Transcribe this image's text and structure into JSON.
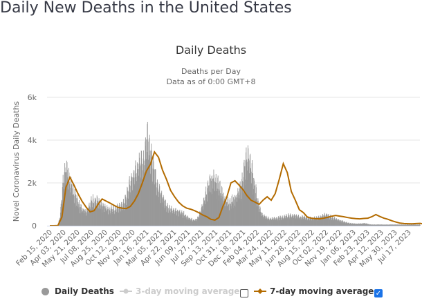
{
  "page": {
    "title": "Daily New Deaths in the United States"
  },
  "chart_data": {
    "type": "bar",
    "title": "Daily Deaths",
    "subtitle_lines": [
      "Deaths per Day",
      "Data as of 0:00 GMT+8"
    ],
    "ylabel": "Novel Coronavirus Daily Deaths",
    "xlabel": "",
    "ylim": [
      0,
      6000
    ],
    "y_ticks": [
      0,
      2000,
      4000,
      6000
    ],
    "y_tick_labels": [
      "0",
      "2k",
      "4k",
      "6k"
    ],
    "grid": true,
    "x_start_date": "Feb 15, 2020",
    "x_end_day": 1288,
    "x_tick_interval_days": 48,
    "x_tick_labels": [
      "Feb 15, 2020",
      "Apr 03, 2020",
      "May 21, 2020",
      "Jul 08, 2020",
      "Aug 25, 2020",
      "Oct 12, 2020",
      "Nov 29, 2020",
      "Jan 16, 2021",
      "Mar 05, 2021",
      "Apr 22, 2021",
      "Jun 09, 2021",
      "Jul 27, 2021",
      "Sep 13, 2021",
      "Oct 31, 2021",
      "Dec 18, 2021",
      "Feb 04, 2022",
      "Mar 24, 2022",
      "May 11, 2022",
      "Jun 28, 2022",
      "Aug 15, 2022",
      "Oct 02, 2022",
      "Nov 19, 2022",
      "Jan 06, 2023",
      "Feb 23, 2023",
      "Apr 12, 2023",
      "May 30, 2023",
      "Jul 17, 2023"
    ],
    "colors": {
      "daily": "#999999",
      "avg3": "#cccccc",
      "avg7": "#b36b00",
      "grid": "#e6e6e6",
      "axis": "#ccd6eb"
    },
    "series": [
      {
        "name": "Daily Deaths",
        "kind": "bar",
        "visible": true,
        "day_step": 7,
        "values": [
          0,
          0,
          0,
          5,
          50,
          450,
          1550,
          2350,
          2600,
          2250,
          1950,
          1700,
          1450,
          1300,
          1050,
          850,
          750,
          700,
          650,
          850,
          1000,
          1200,
          1100,
          1150,
          1050,
          950,
          900,
          850,
          800,
          750,
          750,
          800,
          750,
          800,
          850,
          900,
          900,
          1100,
          1350,
          1650,
          2050,
          2200,
          2350,
          2550,
          2800,
          3050,
          2750,
          3300,
          3850,
          3700,
          3300,
          2950,
          2500,
          2000,
          1600,
          1400,
          1300,
          1050,
          900,
          800,
          750,
          700,
          700,
          680,
          620,
          600,
          560,
          500,
          400,
          350,
          300,
          250,
          270,
          300,
          450,
          700,
          1050,
          1350,
          1700,
          1900,
          2100,
          2150,
          1950,
          1900,
          1750,
          1550,
          1300,
          1150,
          1100,
          1050,
          1100,
          1250,
          1200,
          1400,
          1550,
          1750,
          2300,
          2800,
          3150,
          2900,
          2650,
          2100,
          1650,
          1200,
          800,
          600,
          450,
          400,
          350,
          320,
          320,
          350,
          330,
          330,
          380,
          360,
          400,
          420,
          440,
          480,
          450,
          470,
          430,
          420,
          400,
          380,
          390,
          380,
          350,
          360,
          330,
          340,
          350,
          360,
          380,
          420,
          450,
          520,
          500,
          430,
          380,
          330,
          300,
          260,
          240,
          220,
          180,
          150,
          130,
          110,
          100,
          95,
          90,
          85,
          90,
          100,
          110,
          100,
          80,
          60,
          50
        ]
      },
      {
        "name": "3-day moving average",
        "kind": "line",
        "visible": false
      },
      {
        "name": "7-day moving average",
        "kind": "line",
        "visible": true,
        "day_step": 14,
        "values": [
          0,
          0,
          5,
          400,
          1800,
          2260,
          1900,
          1500,
          1150,
          870,
          650,
          700,
          1000,
          1250,
          1150,
          1050,
          950,
          850,
          820,
          800,
          900,
          1150,
          1500,
          2000,
          2550,
          2870,
          3450,
          3200,
          2600,
          2160,
          1650,
          1350,
          1100,
          930,
          820,
          770,
          700,
          610,
          500,
          420,
          300,
          260,
          380,
          900,
          1350,
          2000,
          2100,
          1900,
          1680,
          1400,
          1190,
          1100,
          1000,
          1200,
          1350,
          1190,
          1500,
          2160,
          2900,
          2480,
          1600,
          1190,
          750,
          610,
          400,
          350,
          330,
          320,
          350,
          390,
          440,
          480,
          450,
          420,
          380,
          350,
          330,
          320,
          340,
          350,
          420,
          520,
          430,
          350,
          300,
          230,
          170,
          120,
          100,
          95,
          90,
          100,
          110,
          70,
          40
        ]
      }
    ]
  },
  "legend": {
    "items": [
      {
        "label": "Daily Deaths",
        "active": true
      },
      {
        "label": "3-day moving average",
        "active": false
      },
      {
        "label": "7-day moving average",
        "active": true
      }
    ],
    "checkbox_3day_checked": false,
    "checkbox_7day_checked": true
  }
}
